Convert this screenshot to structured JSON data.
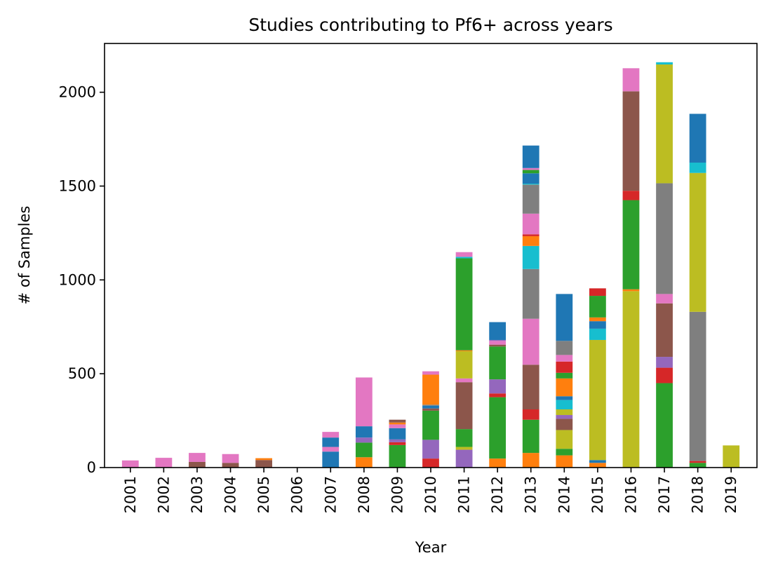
{
  "chart_data": {
    "type": "bar",
    "stacked": true,
    "title": "Studies contributing to Pf6+ across years",
    "xlabel": "Year",
    "ylabel": "# of Samples",
    "ylim": [
      0,
      2260
    ],
    "yticks": [
      0,
      500,
      1000,
      1500,
      2000
    ],
    "grid": false,
    "legend": "none",
    "categories": [
      "2001",
      "2002",
      "2003",
      "2004",
      "2005",
      "2006",
      "2007",
      "2008",
      "2009",
      "2010",
      "2011",
      "2012",
      "2013",
      "2014",
      "2015",
      "2016",
      "2017",
      "2018",
      "2019"
    ],
    "palette": [
      "#1f77b4",
      "#ff7f0e",
      "#2ca02c",
      "#d62728",
      "#9467bd",
      "#8c564b",
      "#e377c2",
      "#7f7f7f",
      "#bcbd22",
      "#17becf"
    ],
    "stacks": [
      [
        {
          "c": 6,
          "v": 38
        }
      ],
      [
        {
          "c": 6,
          "v": 52
        }
      ],
      [
        {
          "c": 5,
          "v": 30
        },
        {
          "c": 6,
          "v": 48
        }
      ],
      [
        {
          "c": 5,
          "v": 25
        },
        {
          "c": 6,
          "v": 47
        }
      ],
      [
        {
          "c": 5,
          "v": 40
        },
        {
          "c": 1,
          "v": 10
        }
      ],
      [],
      [
        {
          "c": 0,
          "v": 85
        },
        {
          "c": 6,
          "v": 25
        },
        {
          "c": 0,
          "v": 50
        },
        {
          "c": 6,
          "v": 30
        }
      ],
      [
        {
          "c": 1,
          "v": 55
        },
        {
          "c": 2,
          "v": 78
        },
        {
          "c": 4,
          "v": 27
        },
        {
          "c": 0,
          "v": 60
        },
        {
          "c": 6,
          "v": 260
        }
      ],
      [
        {
          "c": 2,
          "v": 120
        },
        {
          "c": 3,
          "v": 15
        },
        {
          "c": 4,
          "v": 15
        },
        {
          "c": 0,
          "v": 60
        },
        {
          "c": 6,
          "v": 20
        },
        {
          "c": 1,
          "v": 10
        },
        {
          "c": 5,
          "v": 15
        }
      ],
      [
        {
          "c": 3,
          "v": 48
        },
        {
          "c": 4,
          "v": 100
        },
        {
          "c": 2,
          "v": 155
        },
        {
          "c": 5,
          "v": 12
        },
        {
          "c": 0,
          "v": 15
        },
        {
          "c": 7,
          "v": 5
        },
        {
          "c": 1,
          "v": 160
        },
        {
          "c": 6,
          "v": 18
        }
      ],
      [
        {
          "c": 4,
          "v": 95
        },
        {
          "c": 8,
          "v": 15
        },
        {
          "c": 2,
          "v": 95
        },
        {
          "c": 5,
          "v": 250
        },
        {
          "c": 6,
          "v": 20
        },
        {
          "c": 8,
          "v": 145
        },
        {
          "c": 1,
          "v": 5
        },
        {
          "c": 2,
          "v": 490
        },
        {
          "c": 9,
          "v": 8
        },
        {
          "c": 6,
          "v": 25
        }
      ],
      [
        {
          "c": 1,
          "v": 48
        },
        {
          "c": 2,
          "v": 327
        },
        {
          "c": 3,
          "v": 20
        },
        {
          "c": 4,
          "v": 75
        },
        {
          "c": 2,
          "v": 175
        },
        {
          "c": 5,
          "v": 10
        },
        {
          "c": 6,
          "v": 20
        },
        {
          "c": 4,
          "v": 5
        },
        {
          "c": 0,
          "v": 95
        }
      ],
      [
        {
          "c": 1,
          "v": 78
        },
        {
          "c": 2,
          "v": 177
        },
        {
          "c": 3,
          "v": 55
        },
        {
          "c": 5,
          "v": 238
        },
        {
          "c": 6,
          "v": 245
        },
        {
          "c": 7,
          "v": 265
        },
        {
          "c": 9,
          "v": 123
        },
        {
          "c": 1,
          "v": 52
        },
        {
          "c": 3,
          "v": 10
        },
        {
          "c": 6,
          "v": 110
        },
        {
          "c": 7,
          "v": 155
        },
        {
          "c": 9,
          "v": 5
        },
        {
          "c": 0,
          "v": 55
        },
        {
          "c": 2,
          "v": 18
        },
        {
          "c": 6,
          "v": 10
        },
        {
          "c": 0,
          "v": 120
        }
      ],
      [
        {
          "c": 1,
          "v": 65
        },
        {
          "c": 2,
          "v": 35
        },
        {
          "c": 8,
          "v": 100
        },
        {
          "c": 5,
          "v": 60
        },
        {
          "c": 4,
          "v": 20
        },
        {
          "c": 8,
          "v": 30
        },
        {
          "c": 9,
          "v": 50
        },
        {
          "c": 0,
          "v": 20
        },
        {
          "c": 1,
          "v": 95
        },
        {
          "c": 2,
          "v": 30
        },
        {
          "c": 3,
          "v": 60
        },
        {
          "c": 6,
          "v": 35
        },
        {
          "c": 7,
          "v": 75
        },
        {
          "c": 0,
          "v": 250
        }
      ],
      [
        {
          "c": 1,
          "v": 25
        },
        {
          "c": 0,
          "v": 15
        },
        {
          "c": 8,
          "v": 640
        },
        {
          "c": 9,
          "v": 60
        },
        {
          "c": 0,
          "v": 40
        },
        {
          "c": 1,
          "v": 20
        },
        {
          "c": 2,
          "v": 115
        },
        {
          "c": 3,
          "v": 40
        }
      ],
      [
        {
          "c": 8,
          "v": 940
        },
        {
          "c": 1,
          "v": 10
        },
        {
          "c": 2,
          "v": 475
        },
        {
          "c": 3,
          "v": 50
        },
        {
          "c": 5,
          "v": 530
        },
        {
          "c": 6,
          "v": 123
        }
      ],
      [
        {
          "c": 2,
          "v": 450
        },
        {
          "c": 3,
          "v": 82
        },
        {
          "c": 4,
          "v": 58
        },
        {
          "c": 5,
          "v": 285
        },
        {
          "c": 6,
          "v": 50
        },
        {
          "c": 7,
          "v": 590
        },
        {
          "c": 8,
          "v": 633
        },
        {
          "c": 9,
          "v": 12
        }
      ],
      [
        {
          "c": 2,
          "v": 25
        },
        {
          "c": 3,
          "v": 10
        },
        {
          "c": 7,
          "v": 795
        },
        {
          "c": 8,
          "v": 740
        },
        {
          "c": 9,
          "v": 55
        },
        {
          "c": 0,
          "v": 260
        }
      ],
      [
        {
          "c": 8,
          "v": 118
        }
      ]
    ]
  }
}
